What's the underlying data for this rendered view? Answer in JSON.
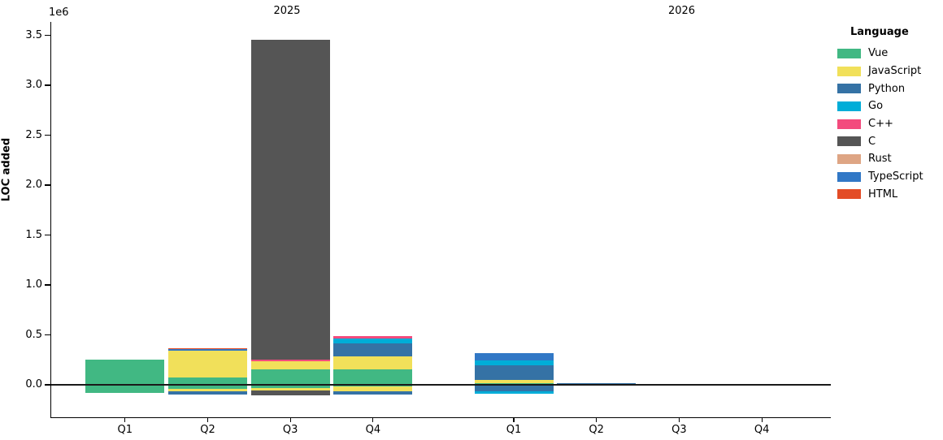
{
  "figure": {
    "ylabel": "LOC added",
    "y_offset_label": "1e6",
    "legend_title": "Language"
  },
  "chart_data": {
    "type": "bar",
    "stacked": true,
    "title": "",
    "ylabel": "LOC added",
    "y_unit": "1e6",
    "ylim": [
      -330000,
      3630000
    ],
    "yticks": [
      0,
      500000,
      1000000,
      1500000,
      2000000,
      2500000,
      3000000,
      3500000
    ],
    "ytick_labels": [
      "0.0",
      "0.5",
      "1.0",
      "1.5",
      "2.0",
      "2.5",
      "3.0",
      "3.5"
    ],
    "facets": [
      "2025",
      "2026"
    ],
    "categories": [
      "Q1",
      "Q2",
      "Q3",
      "Q4"
    ],
    "legend_position": "right",
    "grid": false,
    "note": "values in LOC; positive = added stack, negative = removed stack; stacking order follows series order",
    "series": [
      {
        "name": "Vue",
        "color": "#41b883",
        "added": {
          "2025": [
            255000,
            73000,
            154000,
            154000
          ],
          "2026": [
            19000,
            0,
            0,
            0
          ]
        },
        "removed": {
          "2025": [
            -85000,
            -41000,
            -30000,
            -15000
          ],
          "2026": [
            -8000,
            0,
            0,
            0
          ]
        }
      },
      {
        "name": "JavaScript",
        "color": "#f1e05a",
        "added": {
          "2025": [
            0,
            271000,
            79000,
            128000
          ],
          "2026": [
            33000,
            0,
            0,
            0
          ]
        },
        "removed": {
          "2025": [
            0,
            -24000,
            -24000,
            -53000
          ],
          "2026": [
            0,
            0,
            0,
            0
          ]
        }
      },
      {
        "name": "Python",
        "color": "#3572a5",
        "added": {
          "2025": [
            0,
            0,
            0,
            130000
          ],
          "2026": [
            144000,
            20000,
            0,
            0
          ]
        },
        "removed": {
          "2025": [
            0,
            -33000,
            0,
            -30000
          ],
          "2026": [
            -59000,
            -3000,
            0,
            0
          ]
        }
      },
      {
        "name": "Go",
        "color": "#00add8",
        "added": {
          "2025": [
            0,
            0,
            0,
            49000
          ],
          "2026": [
            49000,
            0,
            0,
            0
          ]
        },
        "removed": {
          "2025": [
            0,
            0,
            0,
            0
          ],
          "2026": [
            -22000,
            0,
            0,
            0
          ]
        }
      },
      {
        "name": "C++",
        "color": "#f34b7d",
        "added": {
          "2025": [
            0,
            0,
            16000,
            29000
          ],
          "2026": [
            0,
            0,
            0,
            0
          ]
        },
        "removed": {
          "2025": [
            0,
            0,
            0,
            0
          ],
          "2026": [
            0,
            0,
            0,
            0
          ]
        }
      },
      {
        "name": "C",
        "color": "#555555",
        "added": {
          "2025": [
            0,
            0,
            3208000,
            0
          ],
          "2026": [
            0,
            0,
            0,
            0
          ]
        },
        "removed": {
          "2025": [
            0,
            0,
            -49000,
            0
          ],
          "2026": [
            0,
            0,
            0,
            0
          ]
        }
      },
      {
        "name": "Rust",
        "color": "#dea584",
        "added": {
          "2025": [
            0,
            0,
            0,
            0
          ],
          "2026": [
            0,
            0,
            0,
            0
          ]
        },
        "removed": {
          "2025": [
            0,
            0,
            0,
            0
          ],
          "2026": [
            0,
            0,
            0,
            0
          ]
        }
      },
      {
        "name": "TypeScript",
        "color": "#3178c6",
        "added": {
          "2025": [
            0,
            14000,
            0,
            0
          ],
          "2026": [
            73000,
            0,
            0,
            0
          ]
        },
        "removed": {
          "2025": [
            0,
            0,
            0,
            0
          ],
          "2026": [
            0,
            0,
            0,
            0
          ]
        }
      },
      {
        "name": "HTML",
        "color": "#e34c26",
        "added": {
          "2025": [
            0,
            11000,
            0,
            0
          ],
          "2026": [
            0,
            0,
            0,
            0
          ]
        },
        "removed": {
          "2025": [
            0,
            0,
            0,
            0
          ],
          "2026": [
            0,
            0,
            0,
            0
          ]
        }
      }
    ]
  }
}
